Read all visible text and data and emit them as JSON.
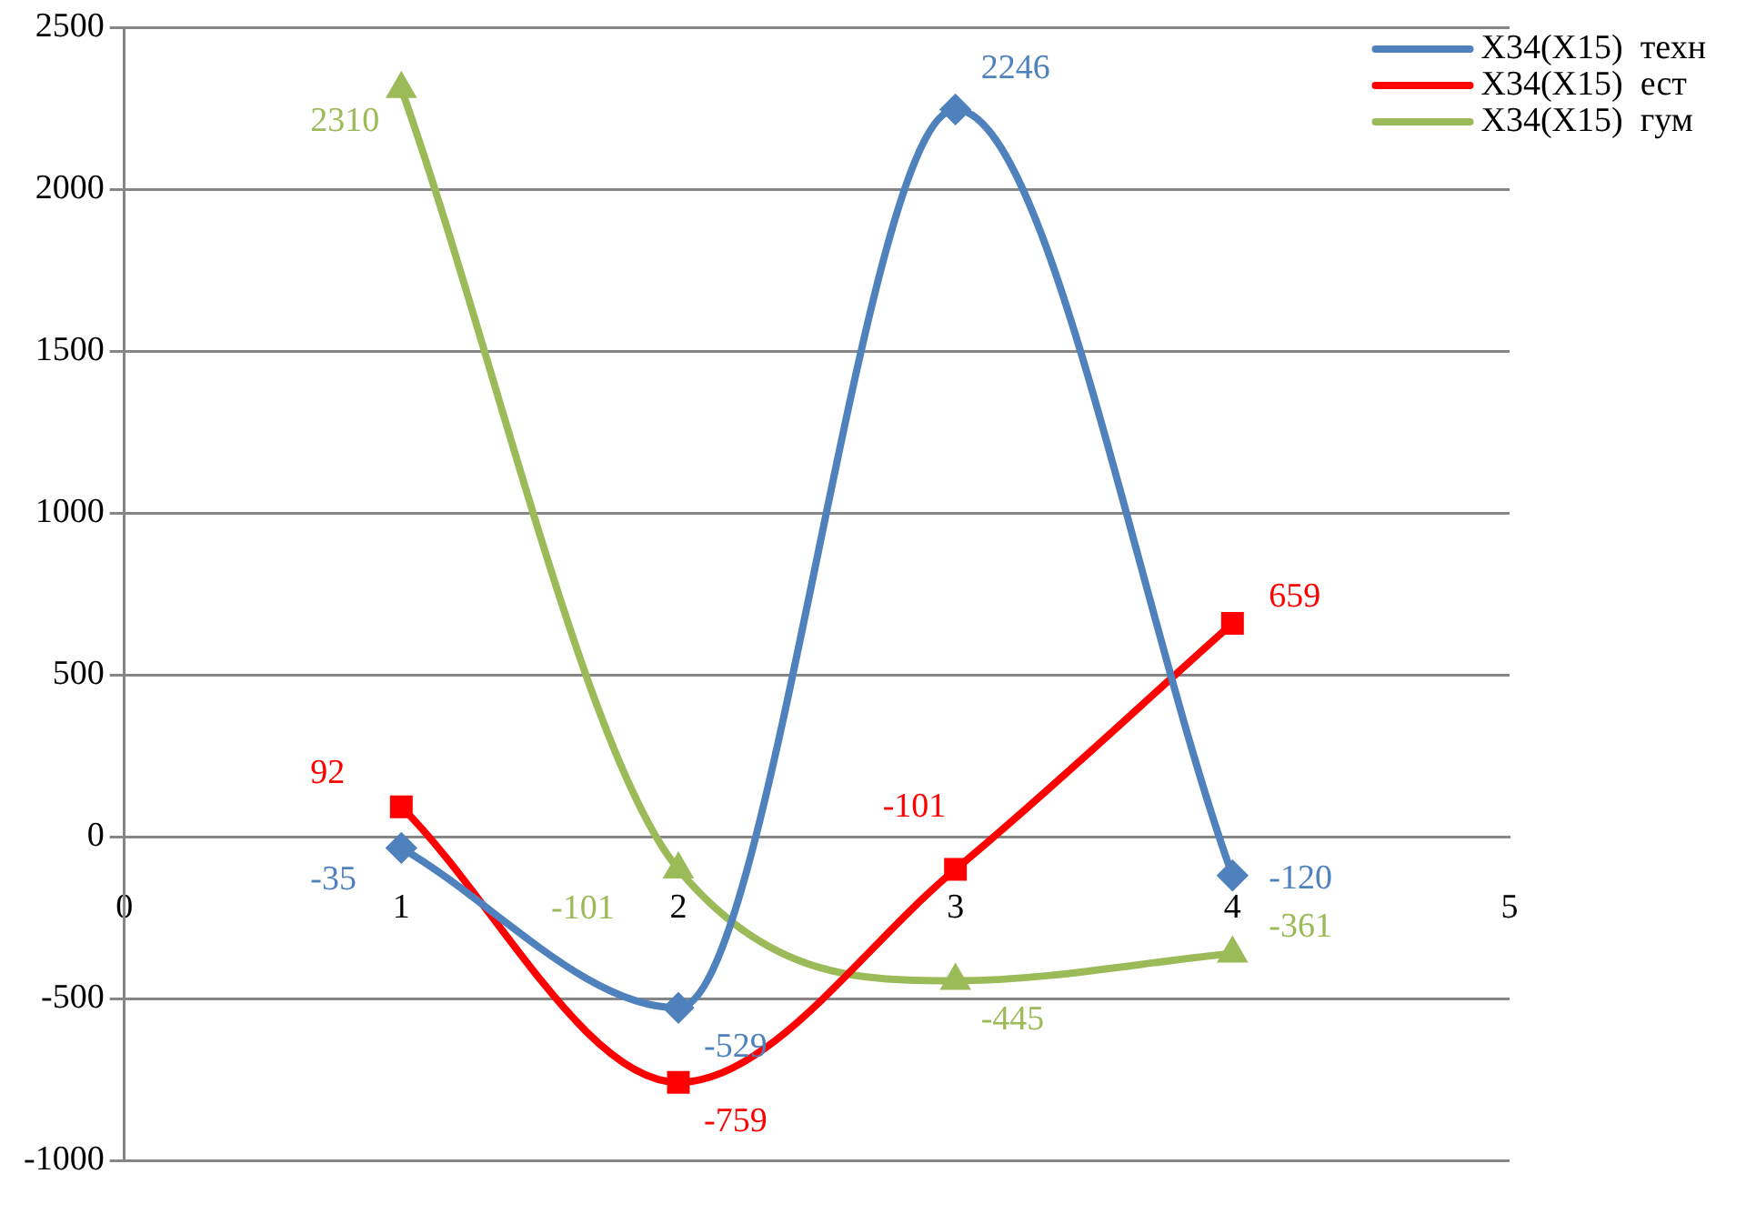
{
  "chart_data": {
    "type": "line",
    "x": [
      1,
      2,
      3,
      4
    ],
    "series": [
      {
        "name": "X34(X15)  техн",
        "color": "#4f81bd",
        "marker": "diamond",
        "values": [
          -35,
          -529,
          2246,
          -120
        ]
      },
      {
        "name": "X34(X15)  ест",
        "color": "#ff0000",
        "marker": "square",
        "values": [
          92,
          -759,
          -101,
          659
        ]
      },
      {
        "name": "X34(X15)  гум",
        "color": "#9bbb59",
        "marker": "triangle",
        "values": [
          2310,
          -101,
          -445,
          -361
        ]
      }
    ],
    "xlim": [
      0,
      5
    ],
    "xticks": [
      0,
      1,
      2,
      3,
      4,
      5
    ],
    "ylim": [
      -1000,
      2500
    ],
    "yticks": [
      -1000,
      -500,
      0,
      500,
      1000,
      1500,
      2000,
      2500
    ],
    "grid": "y",
    "legend": "top right",
    "data_labels": true
  }
}
